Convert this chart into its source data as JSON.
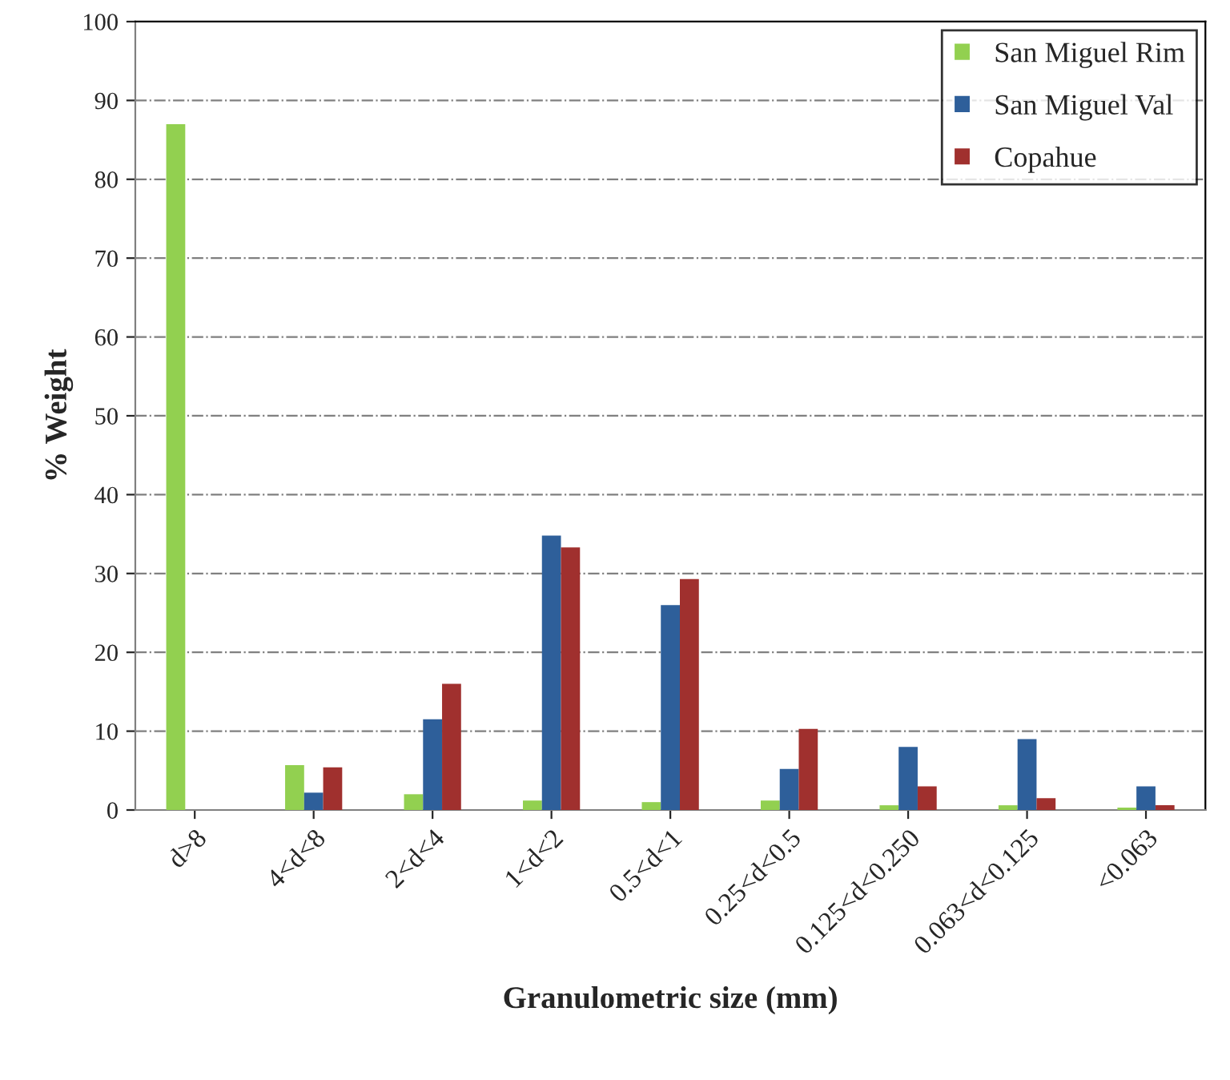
{
  "chart_data": {
    "type": "bar",
    "xlabel": "Granulometric size (mm)",
    "ylabel": "% Weight",
    "categories": [
      "d>8",
      "4<d<8",
      "2<d<4",
      "1<d<2",
      "0.5<d<1",
      "0.25<d<0.5",
      "0.125<d<0.250",
      "0.063<d<0.125",
      "<0.063"
    ],
    "series": [
      {
        "name": "San Miguel Rim",
        "color": "#92d050",
        "values": [
          87,
          5.7,
          2,
          1.2,
          1,
          1.2,
          0.6,
          0.6,
          0.3
        ]
      },
      {
        "name": "San Miguel Val",
        "color": "#2e5f9a",
        "values": [
          null,
          2.2,
          11.5,
          34.8,
          26,
          5.2,
          8,
          9,
          3
        ]
      },
      {
        "name": "Copahue",
        "color": "#a0302e",
        "values": [
          null,
          5.4,
          16,
          33.3,
          29.3,
          10.3,
          3,
          1.5,
          0.6
        ]
      }
    ],
    "ylim": [
      0,
      100
    ],
    "yticks": [
      0,
      10,
      20,
      30,
      40,
      50,
      60,
      70,
      80,
      90,
      100
    ],
    "grid": "y",
    "legend": "top right"
  }
}
